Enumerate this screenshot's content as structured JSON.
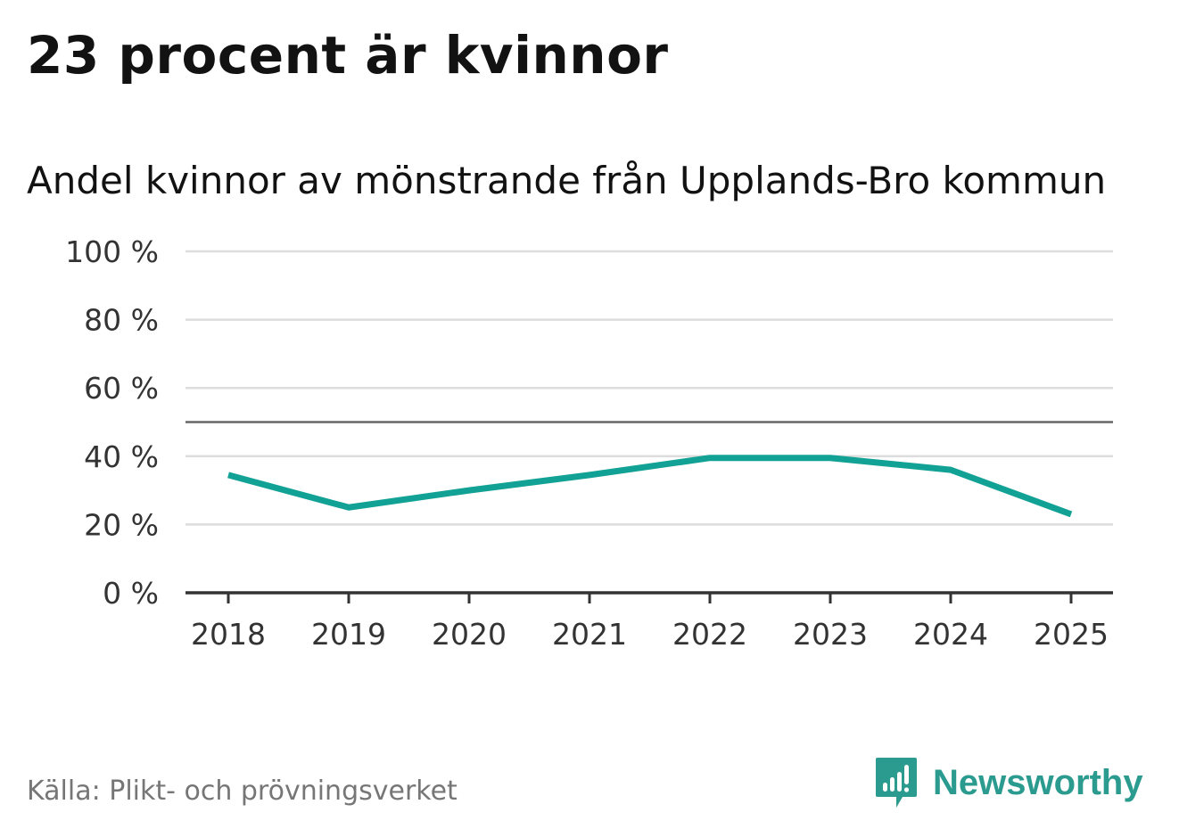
{
  "headline": "23 procent är kvinnor",
  "chart_data": {
    "type": "line",
    "title": "Andel kvinnor av mönstrande från Upplands-Bro kommun",
    "xlabel": "",
    "ylabel": "",
    "categories": [
      "2018",
      "2019",
      "2020",
      "2021",
      "2022",
      "2023",
      "2024",
      "2025"
    ],
    "series": [
      {
        "name": "Upplands-Bro kommun",
        "values": [
          34.5,
          25,
          30,
          34.5,
          39.5,
          39.5,
          36,
          23
        ]
      }
    ],
    "ylim": [
      0,
      100
    ],
    "yticks": [
      0,
      20,
      40,
      60,
      80,
      100
    ],
    "ytick_labels": [
      "0 %",
      "20 %",
      "40 %",
      "60 %",
      "80 %",
      "100 %"
    ],
    "reference_line": 50,
    "grid": true,
    "line_color": "#12a195"
  },
  "footer": {
    "source": "Källa: Plikt- och prövningsverket",
    "brand": "Newsworthy",
    "brand_icon": "newsworthy-logo-icon",
    "brand_color": "#2c9b8f"
  }
}
